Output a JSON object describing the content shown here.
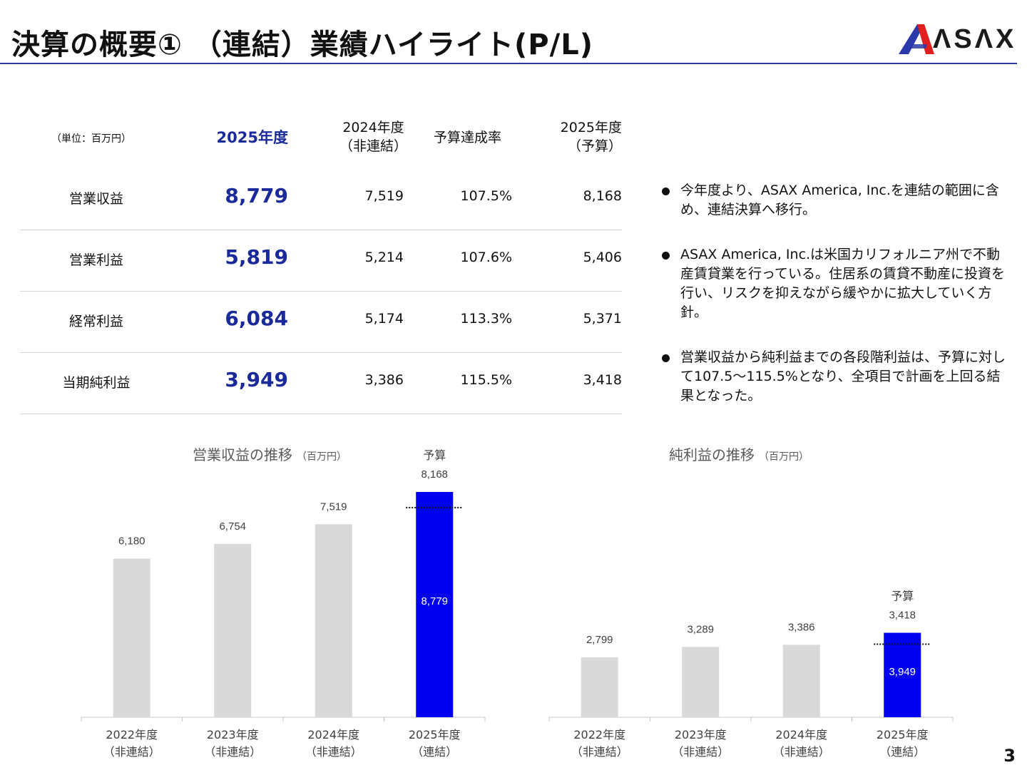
{
  "header": {
    "title": "決算の概要① （連結）業績ハイライト(P/L)",
    "logo_text": "ΛSΛX",
    "accent_color": "#2b3aa8"
  },
  "table": {
    "unit": "（単位：百万円）",
    "columns": {
      "current": "2025年度",
      "previous": "2024年度\n（非連結）",
      "rate": "予算達成率",
      "budget": "2025年度\n（予算）"
    },
    "rows": [
      {
        "label": "営業収益",
        "current": "8,779",
        "previous": "7,519",
        "rate": "107.5%",
        "budget": "8,168"
      },
      {
        "label": "営業利益",
        "current": "5,819",
        "previous": "5,214",
        "rate": "107.6%",
        "budget": "5,406"
      },
      {
        "label": "経常利益",
        "current": "6,084",
        "previous": "5,174",
        "rate": "113.3%",
        "budget": "5,371"
      },
      {
        "label": "当期純利益",
        "current": "3,949",
        "previous": "3,386",
        "rate": "115.5%",
        "budget": "3,418"
      }
    ]
  },
  "notes": [
    "今年度より、ASAX America, Inc.を連結の範囲に含め、連結決算へ移行。",
    "ASAX America, Inc.は米国カリフォルニア州で不動産賃貸業を行っている。住居系の賃貸不動産に投資を行い、リスクを抑えながら緩やかに拡大していく方針。",
    "営業収益から純利益までの各段階利益は、予算に対して107.5～115.5%となり、全項目で計画を上回る結果となった。"
  ],
  "page_number": "3",
  "chart_data": [
    {
      "type": "bar",
      "title": "営業収益の推移",
      "unit": "（百万円）",
      "categories": [
        "2022年度\n（非連結）",
        "2023年度\n（非連結）",
        "2024年度\n（非連結）",
        "2025年度\n（連結）"
      ],
      "values": [
        6180,
        6754,
        7519,
        8779
      ],
      "value_labels": [
        "6,180",
        "6,754",
        "7,519",
        "8,779"
      ],
      "budget": {
        "label": "予算",
        "value": 8168,
        "value_label": "8,168",
        "category_index": 3
      },
      "ylim": [
        0,
        8779
      ],
      "highlight_index": 3,
      "colors": {
        "bar": "#d9d9d9",
        "highlight": "#0000ee"
      }
    },
    {
      "type": "bar",
      "title": "純利益の推移",
      "unit": "（百万円）",
      "categories": [
        "2022年度\n（非連結）",
        "2023年度\n（非連結）",
        "2024年度\n（非連結）",
        "2025年度\n（連結）"
      ],
      "values": [
        2799,
        3289,
        3386,
        3949
      ],
      "value_labels": [
        "2,799",
        "3,289",
        "3,386",
        "3,949"
      ],
      "budget": {
        "label": "予算",
        "value": 3418,
        "value_label": "3,418",
        "category_index": 3
      },
      "ylim": [
        0,
        10000
      ],
      "highlight_index": 3,
      "colors": {
        "bar": "#d9d9d9",
        "highlight": "#0000ee"
      }
    }
  ]
}
